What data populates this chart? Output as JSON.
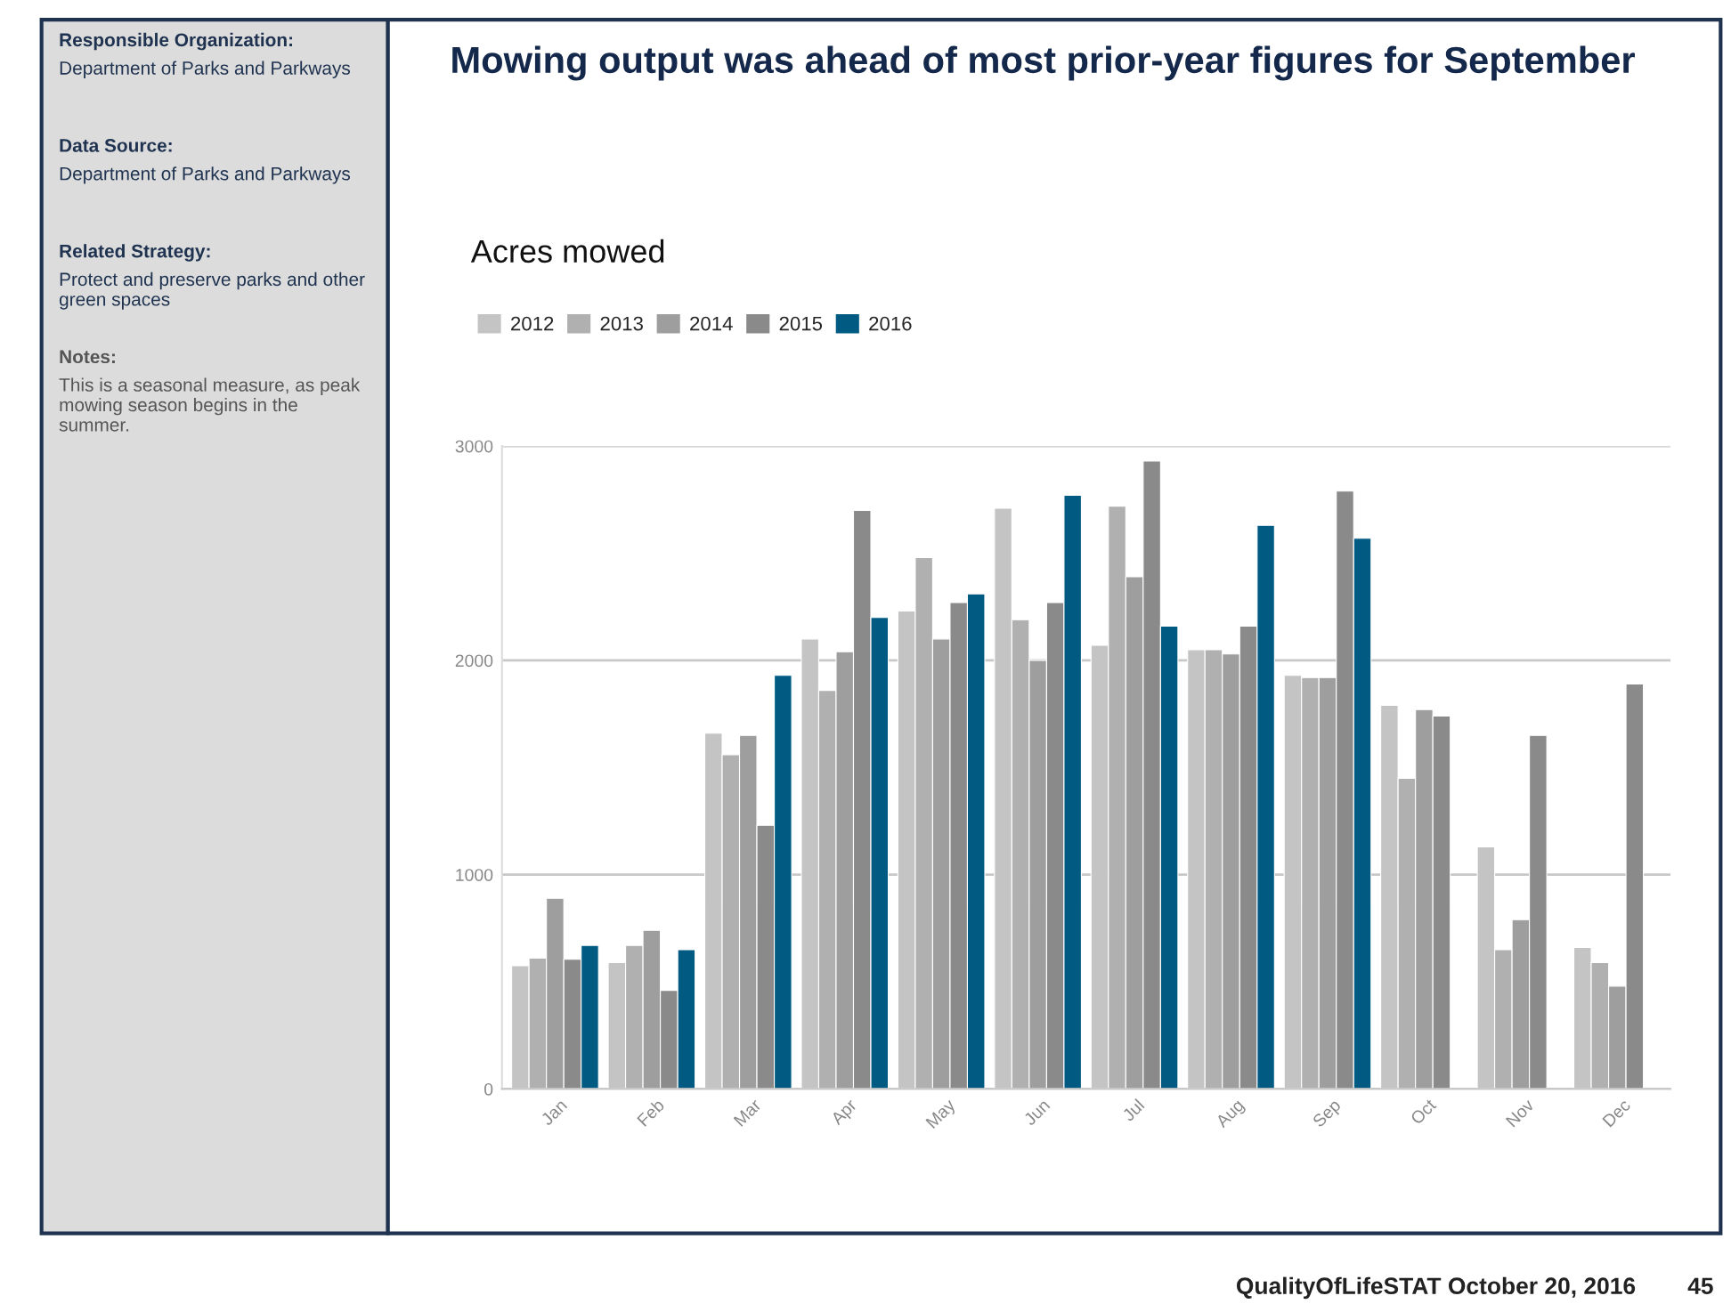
{
  "chart_data": {
    "type": "bar",
    "title": "Mowing output was ahead of most prior-year figures for September",
    "subtitle": "Acres mowed",
    "categories": [
      "Jan",
      "Feb",
      "Mar",
      "Apr",
      "May",
      "Jun",
      "Jul",
      "Aug",
      "Sep",
      "Oct",
      "Nov",
      "Dec"
    ],
    "series": [
      {
        "name": "2012",
        "color": "#c4c4c4",
        "values": [
          575,
          590,
          1660,
          2100,
          2230,
          2710,
          2070,
          2050,
          1930,
          1790,
          1130,
          660
        ]
      },
      {
        "name": "2013",
        "color": "#b0b0b0",
        "values": [
          610,
          670,
          1560,
          1860,
          2480,
          2190,
          2720,
          2050,
          1920,
          1450,
          650,
          590
        ]
      },
      {
        "name": "2014",
        "color": "#9e9e9e",
        "values": [
          890,
          740,
          1650,
          2040,
          2100,
          2000,
          2390,
          2030,
          1920,
          1770,
          790,
          480
        ]
      },
      {
        "name": "2015",
        "color": "#8a8a8a",
        "values": [
          605,
          460,
          1230,
          2700,
          2270,
          2270,
          2930,
          2160,
          2790,
          1740,
          1650,
          1890
        ]
      },
      {
        "name": "2016",
        "color": "#005a82",
        "values": [
          670,
          650,
          1930,
          2200,
          2310,
          2770,
          2160,
          2630,
          2570,
          null,
          null,
          null
        ]
      }
    ],
    "ylim": [
      0,
      3000
    ],
    "yticks": [
      0,
      1000,
      2000,
      3000
    ],
    "grid": "y",
    "legend": "top left",
    "annotations": [
      "Responsible Organization:",
      "Department of Parks and Parkways",
      "Data Source:",
      "Department of Parks and Parkways",
      "Related Strategy:",
      "Protect and preserve parks and other green spaces",
      "Notes:",
      "This is a seasonal measure, as peak mowing season begins in the summer.",
      "QualityOfLifeSTAT October 20, 2016",
      "45"
    ]
  }
}
